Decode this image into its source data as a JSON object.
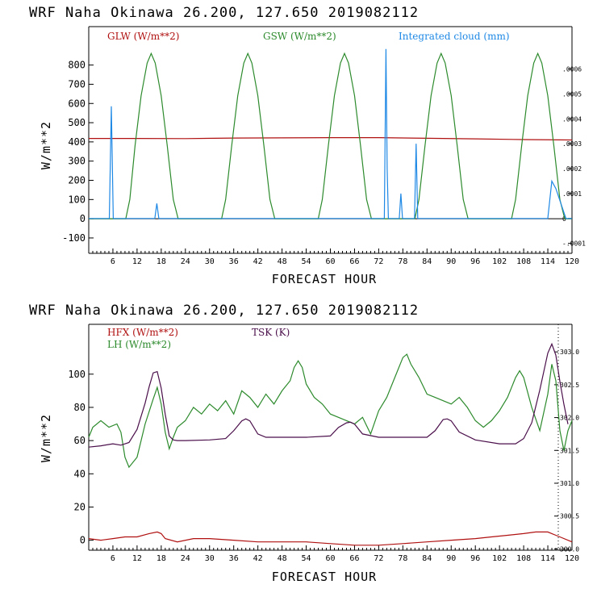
{
  "chart_data": [
    {
      "type": "line",
      "title": "WRF   Naha Okinawa  26.200, 127.650  2019082112",
      "xlabel": "FORECAST HOUR",
      "ylabel": "W/m**2",
      "xlim": [
        0,
        120
      ],
      "ylim": [
        -180,
        1000
      ],
      "x_ticks": [
        6,
        12,
        18,
        24,
        30,
        36,
        42,
        48,
        54,
        60,
        66,
        72,
        78,
        84,
        90,
        96,
        102,
        108,
        114,
        120
      ],
      "y_ticks": [
        -100,
        0,
        100,
        200,
        300,
        400,
        500,
        600,
        700,
        800
      ],
      "right_axis": {
        "ylim": [
          -0.00014,
          0.00077
        ],
        "ticks": [
          -0.0001,
          0,
          0.0001,
          0.0002,
          0.0003,
          0.0004,
          0.0005,
          0.0006
        ],
        "tick_labels": [
          "-.0001",
          "0",
          ".0001",
          ".0002",
          ".0003",
          ".0004",
          ".0005",
          ".0006"
        ]
      },
      "grid": false,
      "series": [
        {
          "name": "GLW (W/m**2)",
          "color": "#b01010",
          "axis": "left",
          "x": [
            0,
            12,
            24,
            36,
            48,
            60,
            72,
            84,
            96,
            108,
            120
          ],
          "y": [
            418,
            418,
            417,
            420,
            421,
            422,
            422,
            419,
            416,
            412,
            410
          ]
        },
        {
          "name": "GSW (W/m**2)",
          "color": "#2c8a2c",
          "axis": "left",
          "x": [
            0,
            9.2,
            10.2,
            11.5,
            13,
            14.5,
            15.5,
            16.5,
            18,
            19.5,
            21,
            22.2,
            23,
            33,
            34,
            35.5,
            37,
            38.5,
            39.5,
            40.5,
            42,
            43.5,
            45,
            46.2,
            47,
            57,
            58,
            59.5,
            61,
            62.5,
            63.5,
            64.5,
            66,
            67.5,
            69,
            70.2,
            71,
            81,
            82,
            83.5,
            85,
            86.5,
            87.5,
            88.5,
            90,
            91.5,
            93,
            94.2,
            95,
            105,
            106,
            107.5,
            109,
            110.5,
            111.5,
            112.5,
            114,
            115.5,
            117,
            118.2,
            120
          ],
          "y": [
            0,
            0,
            100,
            380,
            640,
            810,
            860,
            810,
            640,
            380,
            100,
            0,
            0,
            0,
            100,
            380,
            640,
            810,
            860,
            810,
            640,
            380,
            100,
            0,
            0,
            0,
            100,
            380,
            640,
            810,
            860,
            810,
            640,
            380,
            100,
            0,
            0,
            0,
            100,
            380,
            640,
            810,
            860,
            810,
            640,
            380,
            100,
            0,
            0,
            0,
            100,
            380,
            640,
            810,
            860,
            810,
            640,
            380,
            100,
            0,
            0
          ]
        },
        {
          "name": "Integrated cloud (mm)",
          "color": "#1e88e5",
          "axis": "right",
          "x": [
            0,
            5.1,
            5.6,
            6.1,
            16.4,
            16.9,
            17.4,
            73.4,
            73.8,
            74.1,
            74.4,
            77.1,
            77.5,
            77.9,
            80.9,
            81.3,
            81.7,
            114.0,
            115.0,
            116.0,
            118.5,
            119.0,
            120
          ],
          "y": [
            0,
            0,
            0.00045,
            0,
            0,
            6e-05,
            0,
            0,
            0.00068,
            0.0002,
            0,
            0,
            0.0001,
            0,
            0,
            0.0003,
            0,
            0,
            0.00015,
            0.00012,
            0,
            0,
            0
          ]
        }
      ]
    },
    {
      "type": "line",
      "title": "WRF   Naha Okinawa  26.200, 127.650  2019082112",
      "xlabel": "FORECAST HOUR",
      "ylabel": "W/m**2",
      "xlim": [
        0,
        120
      ],
      "ylim": [
        -6,
        130
      ],
      "x_ticks": [
        6,
        12,
        18,
        24,
        30,
        36,
        42,
        48,
        54,
        60,
        66,
        72,
        78,
        84,
        90,
        96,
        102,
        108,
        114,
        120
      ],
      "y_ticks": [
        0,
        20,
        40,
        60,
        80,
        100
      ],
      "right_axis": {
        "ylim": [
          299.98,
          303.42
        ],
        "ticks": [
          300.0,
          300.5,
          301.0,
          301.5,
          302.0,
          302.5,
          303.0
        ],
        "tick_labels": [
          "300.0",
          "300.5",
          "301.0",
          "301.5",
          "302.0",
          "302.5",
          "303.0"
        ]
      },
      "grid": false,
      "series": [
        {
          "name": "HFX (W/m**2)",
          "color": "#b01010",
          "axis": "left",
          "x": [
            0,
            3,
            6,
            9,
            12,
            15,
            17,
            18,
            19,
            22,
            26,
            30,
            36,
            42,
            48,
            54,
            60,
            66,
            70,
            72,
            78,
            84,
            90,
            96,
            100,
            104,
            108,
            111,
            114,
            116,
            117,
            120
          ],
          "y": [
            1,
            0,
            1,
            2,
            2,
            4,
            5,
            4,
            1,
            -1,
            1,
            1,
            0,
            -1,
            -1,
            -1,
            -2,
            -3,
            -3,
            -3,
            -2,
            -1,
            0,
            1,
            2,
            3,
            4,
            5,
            5,
            3,
            2,
            -1
          ]
        },
        {
          "name": "LH (W/m**2)",
          "color": "#2c8a2c",
          "axis": "left",
          "x": [
            0,
            1,
            3,
            5,
            7,
            8,
            9,
            10,
            12,
            14,
            16,
            17,
            18,
            19,
            20,
            21,
            22,
            24,
            26,
            28,
            30,
            32,
            34,
            36,
            38,
            40,
            42,
            44,
            46,
            48,
            50,
            51,
            52,
            53,
            54,
            56,
            58,
            60,
            62,
            64,
            66,
            68,
            70,
            72,
            74,
            76,
            78,
            79,
            80,
            82,
            84,
            86,
            88,
            90,
            92,
            94,
            96,
            98,
            100,
            102,
            104,
            106,
            107,
            108,
            110,
            112,
            114,
            115,
            116,
            117,
            118,
            119,
            120
          ],
          "y": [
            62,
            68,
            72,
            68,
            70,
            65,
            50,
            44,
            50,
            70,
            85,
            92,
            82,
            65,
            55,
            62,
            68,
            72,
            80,
            76,
            82,
            78,
            84,
            76,
            90,
            86,
            80,
            88,
            82,
            90,
            96,
            104,
            108,
            104,
            94,
            86,
            82,
            76,
            74,
            72,
            70,
            74,
            64,
            78,
            86,
            98,
            110,
            112,
            106,
            98,
            88,
            86,
            84,
            82,
            86,
            80,
            72,
            68,
            72,
            78,
            86,
            98,
            102,
            98,
            80,
            66,
            88,
            106,
            96,
            66,
            54,
            66,
            72
          ]
        },
        {
          "name": "TSK (K)",
          "color": "#4a0f4a",
          "axis": "right",
          "x": [
            0,
            3,
            6,
            8,
            10,
            12,
            14,
            15,
            16,
            17,
            18,
            19,
            20,
            21,
            22,
            24,
            30,
            34,
            36,
            38,
            39,
            40,
            42,
            44,
            48,
            54,
            60,
            62,
            64,
            65,
            66,
            68,
            72,
            78,
            84,
            86,
            88,
            89,
            90,
            92,
            96,
            102,
            104,
            106,
            108,
            110,
            112,
            114,
            115,
            116,
            117,
            118,
            119
          ],
          "y": [
            301.55,
            301.57,
            301.6,
            301.58,
            301.62,
            301.82,
            302.22,
            302.47,
            302.68,
            302.7,
            302.45,
            302.05,
            301.72,
            301.66,
            301.65,
            301.65,
            301.66,
            301.68,
            301.8,
            301.95,
            301.98,
            301.95,
            301.75,
            301.7,
            301.7,
            301.7,
            301.72,
            301.85,
            301.92,
            301.93,
            301.9,
            301.75,
            301.7,
            301.7,
            301.7,
            301.8,
            301.97,
            301.98,
            301.95,
            301.78,
            301.66,
            301.6,
            301.6,
            301.6,
            301.68,
            301.92,
            302.42,
            302.98,
            303.12,
            302.95,
            302.55,
            302.2,
            301.9
          ]
        }
      ]
    }
  ]
}
